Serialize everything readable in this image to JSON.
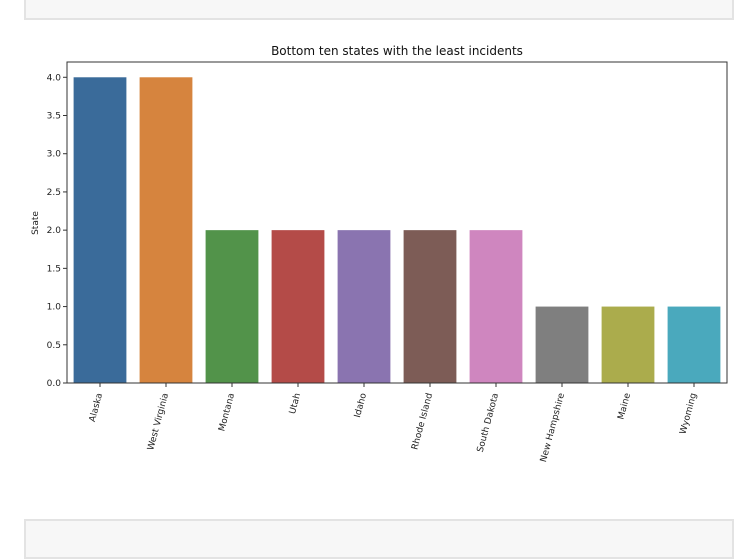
{
  "chart_data": {
    "type": "bar",
    "title": "Bottom ten states with the least incidents",
    "xlabel": "",
    "ylabel": "State",
    "ylim": [
      0,
      4.2
    ],
    "yticks": [
      "0.0",
      "0.5",
      "1.0",
      "1.5",
      "2.0",
      "2.5",
      "3.0",
      "3.5",
      "4.0"
    ],
    "categories": [
      "Alaska",
      "West Virginia",
      "Montana",
      "Utah",
      "Idaho",
      "Rhode Island",
      "South Dakota",
      "New Hampshire",
      "Maine",
      "Wyoming"
    ],
    "values": [
      4,
      4,
      2,
      2,
      2,
      2,
      2,
      1,
      1,
      1
    ],
    "colors": [
      "#3a6b9a",
      "#d6843e",
      "#52934a",
      "#b44b48",
      "#8a74b0",
      "#7d5c56",
      "#cf86bf",
      "#7f7f7f",
      "#abac4c",
      "#4aa9bd"
    ],
    "grid": false,
    "legend": "none"
  }
}
